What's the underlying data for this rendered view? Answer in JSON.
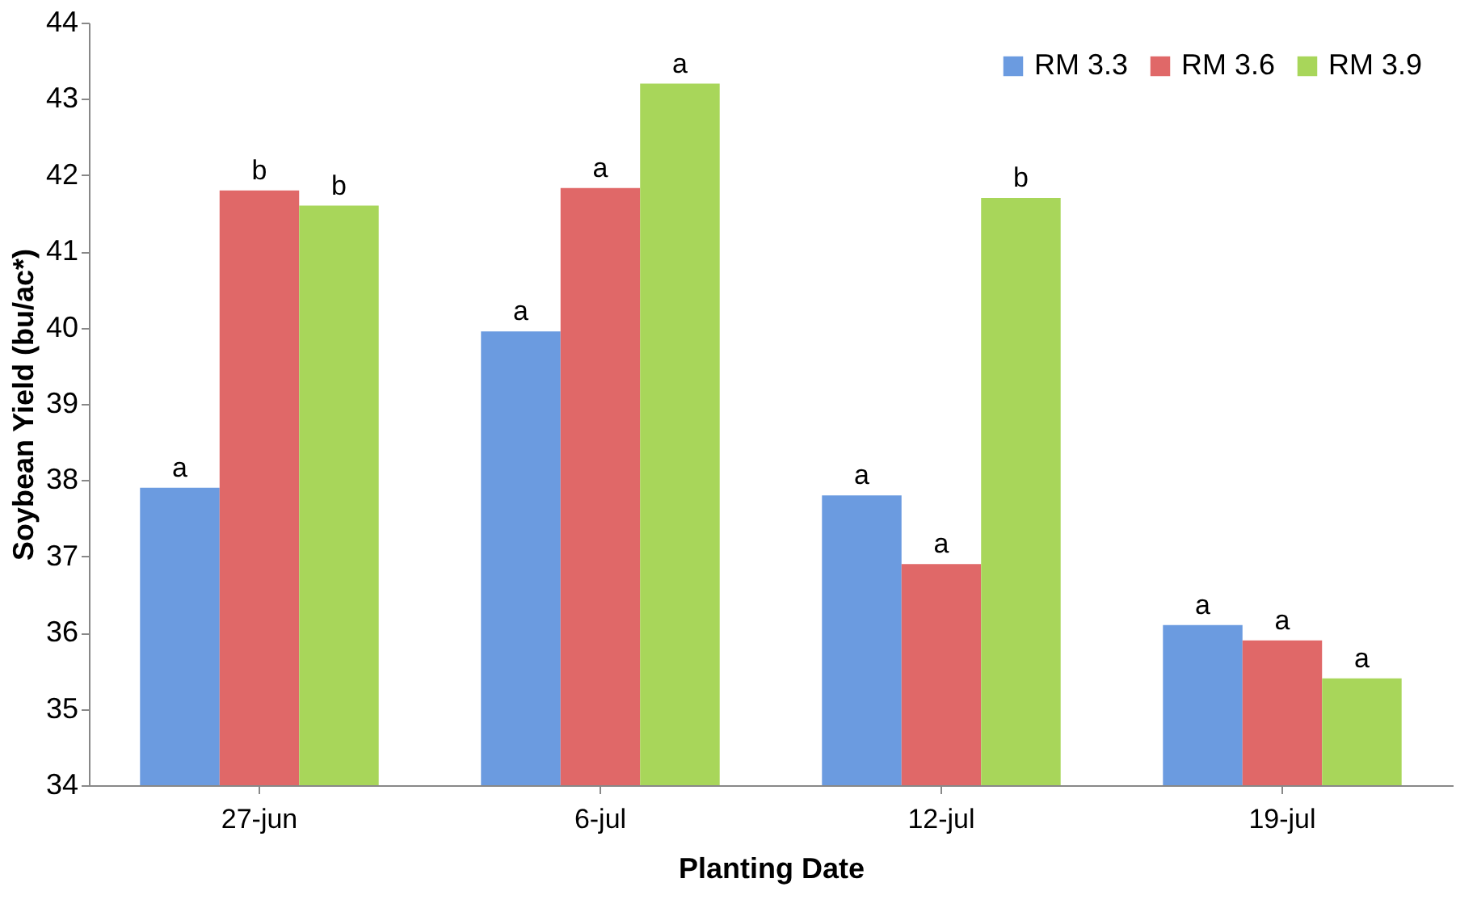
{
  "chart_data": {
    "type": "bar",
    "xlabel": "Planting Date",
    "ylabel": "Soybean Yield (bu/ac*)",
    "categories": [
      "27-jun",
      "6-jul",
      "12-jul",
      "19-jul"
    ],
    "series": [
      {
        "name": "RM 3.3",
        "color": "#6b9be0",
        "values": [
          37.9,
          39.95,
          37.8,
          36.1
        ],
        "value_labels": [
          "a",
          "a",
          "a",
          "a"
        ]
      },
      {
        "name": "RM 3.6",
        "color": "#e06868",
        "values": [
          41.8,
          41.83,
          36.9,
          35.9
        ],
        "value_labels": [
          "b",
          "a",
          "a",
          "a"
        ]
      },
      {
        "name": "RM 3.9",
        "color": "#a8d65a",
        "values": [
          41.6,
          43.2,
          41.7,
          35.4
        ],
        "value_labels": [
          "b",
          "a",
          "b",
          "a"
        ]
      }
    ],
    "ylim": [
      34,
      44
    ],
    "yticks": [
      34,
      35,
      36,
      37,
      38,
      39,
      40,
      41,
      42,
      43,
      44
    ],
    "grid": false,
    "legend": "top right"
  }
}
